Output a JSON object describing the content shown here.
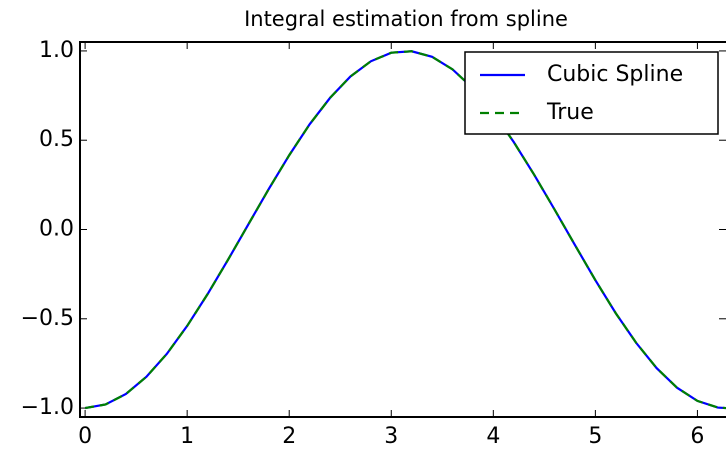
{
  "chart_data": {
    "type": "line",
    "title": "Integral estimation from spline",
    "x": [
      0,
      0.2,
      0.4,
      0.6,
      0.8,
      1.0,
      1.2,
      1.4,
      1.6,
      1.8,
      2.0,
      2.2,
      2.4,
      2.6,
      2.8,
      3.0,
      3.2,
      3.4,
      3.6,
      3.8,
      4.0,
      4.2,
      4.4,
      4.6,
      4.8,
      5.0,
      5.2,
      5.4,
      5.6,
      5.8,
      6.0,
      6.2,
      6.28
    ],
    "series": [
      {
        "name": "Cubic Spline",
        "color": "#0000ff",
        "dash": false,
        "values": [
          -1,
          -0.98,
          -0.921,
          -0.825,
          -0.697,
          -0.54,
          -0.362,
          -0.17,
          0.029,
          0.227,
          0.416,
          0.589,
          0.737,
          0.857,
          0.942,
          0.99,
          0.998,
          0.967,
          0.897,
          0.791,
          0.654,
          0.49,
          0.307,
          0.112,
          -0.087,
          -0.284,
          -0.469,
          -0.635,
          -0.776,
          -0.886,
          -0.96,
          -0.997,
          -1.0
        ]
      },
      {
        "name": "True",
        "color": "#008000",
        "dash": true,
        "values": [
          -1,
          -0.98,
          -0.921,
          -0.825,
          -0.697,
          -0.54,
          -0.362,
          -0.17,
          0.029,
          0.227,
          0.416,
          0.589,
          0.737,
          0.857,
          0.942,
          0.99,
          0.998,
          0.967,
          0.897,
          0.791,
          0.654,
          0.49,
          0.307,
          0.112,
          -0.087,
          -0.284,
          -0.469,
          -0.635,
          -0.776,
          -0.886,
          -0.96,
          -0.997,
          -1.0
        ]
      }
    ],
    "xlim": [
      -0.05,
      6.28
    ],
    "ylim": [
      -1.05,
      1.05
    ],
    "xticks": [
      0,
      1,
      2,
      3,
      4,
      5,
      6
    ],
    "yticks": [
      {
        "value": -1.0,
        "label": "−1.0"
      },
      {
        "value": -0.5,
        "label": "−0.5"
      },
      {
        "value": 0.0,
        "label": "0.0"
      },
      {
        "value": 0.5,
        "label": "0.5"
      },
      {
        "value": 1.0,
        "label": "1.0"
      }
    ],
    "legend": "upper right"
  }
}
